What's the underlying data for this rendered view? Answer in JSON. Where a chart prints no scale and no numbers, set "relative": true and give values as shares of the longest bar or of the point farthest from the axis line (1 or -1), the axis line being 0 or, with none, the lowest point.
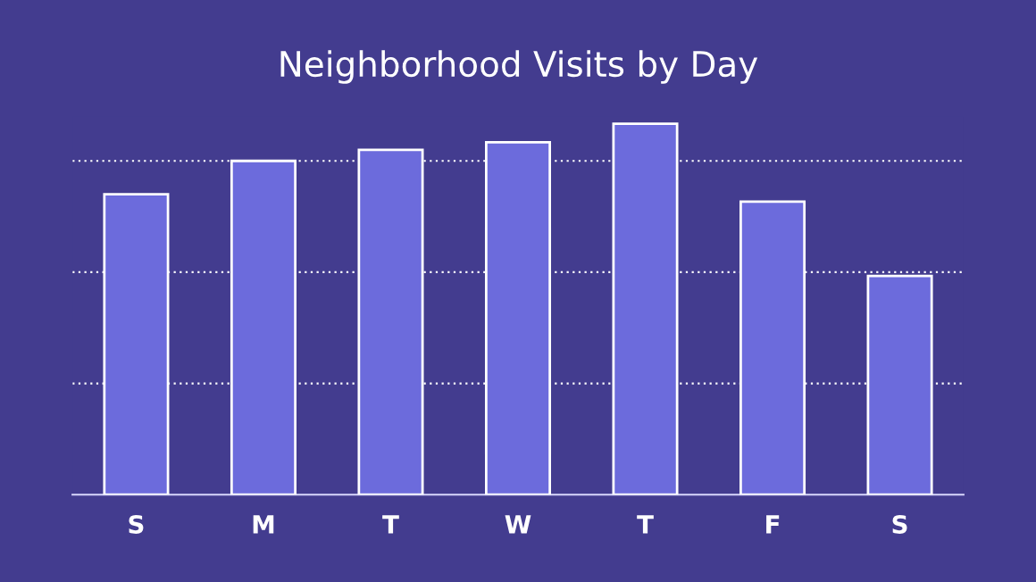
{
  "chart_data": {
    "type": "bar",
    "title": "Neighborhood Visits by Day",
    "categories": [
      "S",
      "M",
      "T",
      "W",
      "T",
      "F",
      "S"
    ],
    "values": [
      0.81,
      0.9,
      0.93,
      0.95,
      1,
      0.79,
      0.59
    ],
    "color": "#6c6bdc",
    "relative": true,
    "grid": "y"
  }
}
